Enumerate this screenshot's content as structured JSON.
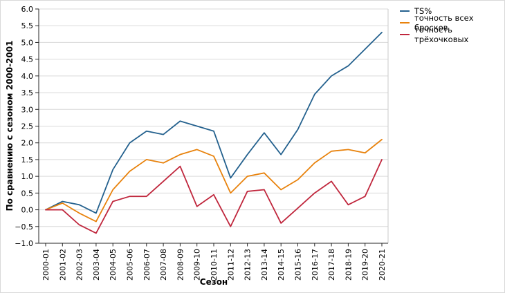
{
  "chart_data": {
    "type": "line",
    "title": "",
    "xlabel": "Сезон",
    "ylabel": "По сравнению с сезоном 2000-2001",
    "ylim": [
      -1.0,
      6.0
    ],
    "ytick_step": 0.5,
    "grid": true,
    "legend_position": "outside-top-right",
    "grid_color": "#d9d9d9",
    "axis_color": "#262626",
    "categories": [
      "2000-01",
      "2001-02",
      "2002-03",
      "2003-04",
      "2004-05",
      "2005-06",
      "2006-07",
      "2007-08",
      "2008-09",
      "2009-10",
      "2010-11",
      "2011-12",
      "2012-13",
      "2013-14",
      "2014-15",
      "2015-16",
      "2016-17",
      "2017-18",
      "2018-19",
      "2019-20",
      "2020-21"
    ],
    "series": [
      {
        "name": "TS%",
        "color": "#24618e",
        "values": [
          0.0,
          0.25,
          0.15,
          -0.1,
          1.2,
          2.0,
          2.35,
          2.25,
          2.65,
          2.5,
          2.35,
          0.95,
          1.65,
          2.3,
          1.65,
          2.4,
          3.45,
          4.0,
          4.3,
          4.8,
          5.3
        ]
      },
      {
        "name": "точность всех бросков",
        "color": "#e8820c",
        "values": [
          0.0,
          0.2,
          -0.1,
          -0.35,
          0.6,
          1.15,
          1.5,
          1.4,
          1.65,
          1.8,
          1.6,
          0.5,
          1.0,
          1.1,
          0.6,
          0.9,
          1.4,
          1.75,
          1.8,
          1.7,
          2.1
        ]
      },
      {
        "name": "точность трёхочковых",
        "color": "#c0273d",
        "values": [
          0.0,
          0.0,
          -0.45,
          -0.7,
          0.25,
          0.4,
          0.4,
          0.85,
          1.3,
          0.1,
          0.45,
          -0.5,
          0.55,
          0.6,
          -0.4,
          0.05,
          0.5,
          0.85,
          0.15,
          0.4,
          1.5
        ]
      }
    ]
  }
}
